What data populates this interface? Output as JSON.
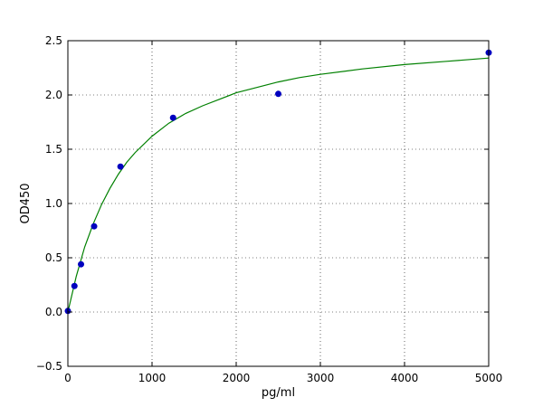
{
  "chart_data": {
    "type": "scatter",
    "title": "",
    "xlabel": "pg/ml",
    "ylabel": "OD450",
    "xlim": [
      0,
      5000
    ],
    "ylim": [
      -0.5,
      2.5
    ],
    "x_ticks": [
      0,
      1000,
      2000,
      3000,
      4000,
      5000
    ],
    "y_ticks": [
      -0.5,
      0.0,
      0.5,
      1.0,
      1.5,
      2.0,
      2.5
    ],
    "x_tick_labels": [
      "0",
      "1000",
      "2000",
      "3000",
      "4000",
      "5000"
    ],
    "y_tick_labels": [
      "−0.5",
      "0.0",
      "0.5",
      "1.0",
      "1.5",
      "2.0",
      "2.5"
    ],
    "grid": true,
    "series": [
      {
        "kind": "points",
        "color": "#0000bf",
        "points": [
          {
            "x": 0,
            "y": 0.01
          },
          {
            "x": 78,
            "y": 0.24
          },
          {
            "x": 156,
            "y": 0.44
          },
          {
            "x": 312,
            "y": 0.79
          },
          {
            "x": 625,
            "y": 1.34
          },
          {
            "x": 1250,
            "y": 1.79
          },
          {
            "x": 2500,
            "y": 2.01
          },
          {
            "x": 5000,
            "y": 2.39
          }
        ]
      },
      {
        "kind": "fit-curve",
        "color": "#008000",
        "points": [
          {
            "x": 0,
            "y": 0.0
          },
          {
            "x": 100,
            "y": 0.33
          },
          {
            "x": 200,
            "y": 0.6
          },
          {
            "x": 300,
            "y": 0.81
          },
          {
            "x": 400,
            "y": 0.99
          },
          {
            "x": 500,
            "y": 1.14
          },
          {
            "x": 600,
            "y": 1.27
          },
          {
            "x": 700,
            "y": 1.38
          },
          {
            "x": 800,
            "y": 1.47
          },
          {
            "x": 1000,
            "y": 1.62
          },
          {
            "x": 1200,
            "y": 1.74
          },
          {
            "x": 1400,
            "y": 1.83
          },
          {
            "x": 1600,
            "y": 1.9
          },
          {
            "x": 1800,
            "y": 1.96
          },
          {
            "x": 2000,
            "y": 2.02
          },
          {
            "x": 2250,
            "y": 2.07
          },
          {
            "x": 2500,
            "y": 2.12
          },
          {
            "x": 2750,
            "y": 2.16
          },
          {
            "x": 3000,
            "y": 2.19
          },
          {
            "x": 3500,
            "y": 2.24
          },
          {
            "x": 4000,
            "y": 2.28
          },
          {
            "x": 4500,
            "y": 2.31
          },
          {
            "x": 5000,
            "y": 2.34
          }
        ]
      }
    ]
  }
}
